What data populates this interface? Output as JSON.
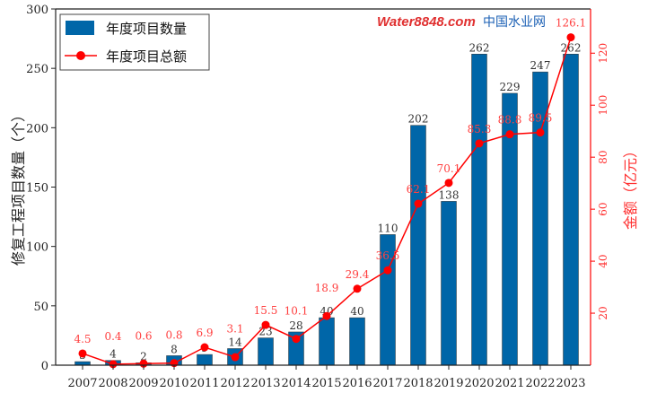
{
  "chart_data": {
    "type": "bar+line",
    "categories": [
      "2007",
      "2008",
      "2009",
      "2010",
      "2011",
      "2012",
      "2013",
      "2014",
      "2015",
      "2016",
      "2017",
      "2018",
      "2019",
      "2020",
      "2021",
      "2022",
      "2023"
    ],
    "series": [
      {
        "name": "年度项目数量",
        "type": "bar",
        "axis": "left",
        "color": "#0066a8",
        "values": [
          3,
          4,
          2,
          8,
          9,
          14,
          23,
          28,
          40,
          40,
          110,
          202,
          138,
          262,
          229,
          247,
          262
        ]
      },
      {
        "name": "年度项目总额",
        "type": "line",
        "axis": "right",
        "color": "#ff0000",
        "values": [
          4.5,
          0.4,
          0.6,
          0.8,
          6.9,
          3.1,
          15.5,
          10.1,
          18.9,
          29.4,
          36.5,
          62.1,
          70.1,
          85.3,
          88.8,
          89.5,
          126.1
        ]
      }
    ],
    "ylabel": "修复工程项目数量（个）",
    "y2label": "金额（亿元）",
    "ylim": [
      0,
      300
    ],
    "y2lim": [
      0,
      137
    ],
    "yticks": [
      0,
      50,
      100,
      150,
      200,
      250,
      300
    ],
    "y2ticks": [
      20,
      40,
      60,
      80,
      100,
      120
    ],
    "legend": "top-left"
  },
  "watermark": {
    "brand": "Water8848.com",
    "name": "中国水业网"
  }
}
